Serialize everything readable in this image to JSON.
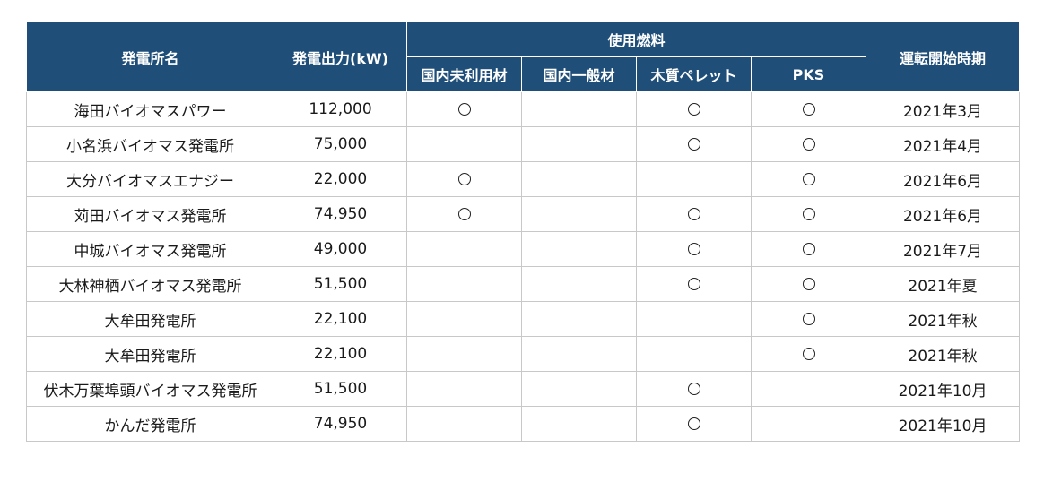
{
  "table": {
    "headers": {
      "name": "発電所名",
      "output": "発電出力(kW)",
      "fuel_group": "使用燃料",
      "fuel_domestic_unused": "国内未利用材",
      "fuel_domestic_general": "国内一般材",
      "fuel_wood_pellet": "木質ペレット",
      "fuel_pks": "PKS",
      "start": "運転開始時期"
    },
    "rows": [
      {
        "name": "海田バイオマスパワー",
        "output": "112,000",
        "unused": true,
        "general": false,
        "pellet": true,
        "pks": true,
        "start": "2021年3月"
      },
      {
        "name": "小名浜バイオマス発電所",
        "output": "75,000",
        "unused": false,
        "general": false,
        "pellet": true,
        "pks": true,
        "start": "2021年4月"
      },
      {
        "name": "大分バイオマスエナジー",
        "output": "22,000",
        "unused": true,
        "general": false,
        "pellet": false,
        "pks": true,
        "start": "2021年6月"
      },
      {
        "name": "苅田バイオマス発電所",
        "output": "74,950",
        "unused": true,
        "general": false,
        "pellet": true,
        "pks": true,
        "start": "2021年6月"
      },
      {
        "name": "中城バイオマス発電所",
        "output": "49,000",
        "unused": false,
        "general": false,
        "pellet": true,
        "pks": true,
        "start": "2021年7月"
      },
      {
        "name": "大林神栖バイオマス発電所",
        "output": "51,500",
        "unused": false,
        "general": false,
        "pellet": true,
        "pks": true,
        "start": "2021年夏"
      },
      {
        "name": "大牟田発電所",
        "output": "22,100",
        "unused": false,
        "general": false,
        "pellet": false,
        "pks": true,
        "start": "2021年秋"
      },
      {
        "name": "大牟田発電所",
        "output": "22,100",
        "unused": false,
        "general": false,
        "pellet": false,
        "pks": true,
        "start": "2021年秋"
      },
      {
        "name": "伏木万葉埠頭バイオマス発電所",
        "output": "51,500",
        "unused": false,
        "general": false,
        "pellet": true,
        "pks": false,
        "start": "2021年10月"
      },
      {
        "name": "かんだ発電所",
        "output": "74,950",
        "unused": false,
        "general": false,
        "pellet": true,
        "pks": false,
        "start": "2021年10月"
      }
    ]
  },
  "colors": {
    "header_bg": "#1f4e79",
    "header_text": "#ffffff",
    "grid": "#c8c8c8"
  },
  "icons": {
    "used_mark": "circle-mark-icon"
  }
}
